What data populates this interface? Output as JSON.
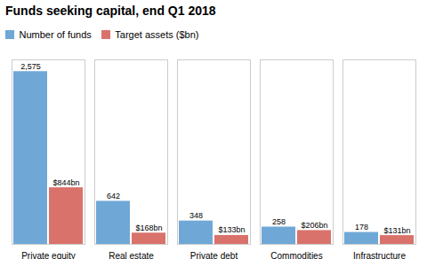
{
  "chart_data": {
    "type": "bar",
    "title": "Funds seeking capital, end Q1 2018",
    "categories": [
      "Private equity",
      "Real estate",
      "Private debt",
      "Commodities",
      "Infrastructure"
    ],
    "series": [
      {
        "name": "Number of funds",
        "color": "#6fa8d6",
        "values": [
          2575,
          642,
          348,
          258,
          178
        ],
        "value_labels": [
          "2,575",
          "642",
          "348",
          "258",
          "178"
        ]
      },
      {
        "name": "Target assets ($bn)",
        "color": "#d9726b",
        "values": [
          844,
          168,
          133,
          206,
          131
        ],
        "value_labels": [
          "$844bn",
          "$168bn",
          "$133bn",
          "$206bn",
          "$131bn"
        ]
      }
    ],
    "ylim": [
      0,
      2750
    ],
    "data_labels": true,
    "tick_labels": "x",
    "legend": "upper left"
  }
}
